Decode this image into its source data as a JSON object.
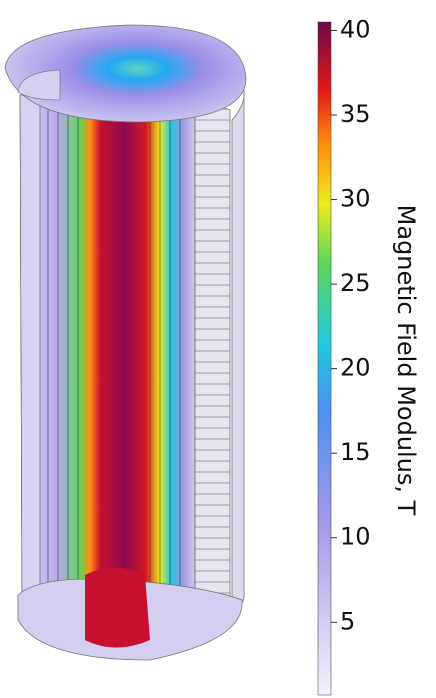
{
  "chart_data": {
    "type": "colorbar",
    "label": "Magnetic Field Modulus, T",
    "clim": [
      0.7,
      40.5
    ],
    "ticks": [
      5,
      10,
      15,
      20,
      25,
      30,
      35,
      40
    ]
  }
}
